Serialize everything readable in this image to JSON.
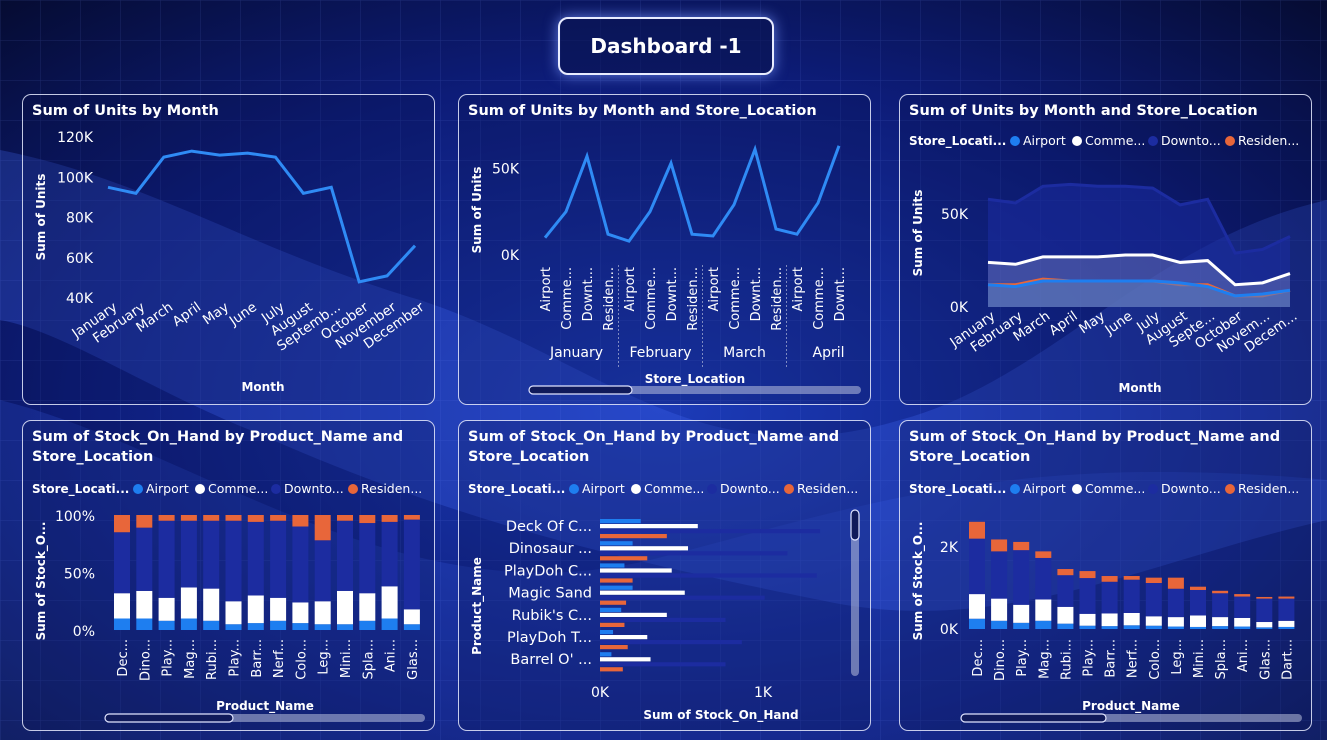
{
  "page": {
    "title": "Dashboard -1"
  },
  "colors": {
    "airport": "#1e7ef0",
    "commercial": "#ffffff",
    "downtown": "#1c2ca0",
    "residential": "#e8663a",
    "line": "#2f8bf5"
  },
  "legend": {
    "title": "Store_Locati...",
    "labels": [
      "Airport",
      "Comme...",
      "Downto...",
      "Residen..."
    ]
  },
  "chart_data": [
    {
      "type": "line",
      "title": "Sum of Units by Month",
      "xlabel": "Month",
      "ylabel": "Sum of Units",
      "categories": [
        "January",
        "February",
        "March",
        "April",
        "May",
        "June",
        "July",
        "August",
        "Septemb...",
        "October",
        "November",
        "December"
      ],
      "series": [
        {
          "values": [
            95000,
            92000,
            110000,
            113000,
            111000,
            112000,
            110000,
            92000,
            95000,
            48000,
            51000,
            66000
          ]
        }
      ],
      "yticks": [
        "40K",
        "60K",
        "80K",
        "100K",
        "120K"
      ],
      "ylim": [
        40000,
        120000
      ]
    },
    {
      "type": "line",
      "title": "Sum of Units by Month and Store_Location",
      "xlabel": "Store_Location",
      "ylabel": "Sum of Units",
      "groups": [
        "January",
        "February",
        "March",
        "April"
      ],
      "categories": [
        "Airport",
        "Comme...",
        "Downt...",
        "Residen...",
        "Airport",
        "Comme...",
        "Downt...",
        "Residen...",
        "Airport",
        "Comme...",
        "Downt...",
        "Residen...",
        "Airport",
        "Comme...",
        "Downt..."
      ],
      "series": [
        {
          "values": [
            10000,
            25000,
            57000,
            12000,
            8000,
            25000,
            53000,
            12000,
            11000,
            29000,
            61000,
            15000,
            12000,
            30000,
            63000
          ]
        }
      ],
      "yticks": [
        "0K",
        "50K"
      ],
      "ylim": [
        0,
        75000
      ]
    },
    {
      "type": "area",
      "title": "Sum of Units by Month and Store_Location",
      "xlabel": "Month",
      "ylabel": "Sum of Units",
      "categories": [
        "January",
        "February",
        "March",
        "April",
        "May",
        "June",
        "July",
        "August",
        "Septe...",
        "October",
        "Novem...",
        "Decem..."
      ],
      "series": [
        {
          "name": "Airport",
          "values": [
            12000,
            11000,
            14000,
            14000,
            14000,
            14000,
            14000,
            13000,
            11000,
            6000,
            7000,
            9000
          ]
        },
        {
          "name": "Comme...",
          "values": [
            24000,
            23000,
            27000,
            27000,
            27000,
            28000,
            28000,
            24000,
            25000,
            12000,
            13000,
            18000
          ]
        },
        {
          "name": "Downto...",
          "values": [
            58000,
            56000,
            65000,
            66000,
            65000,
            65000,
            64000,
            55000,
            58000,
            29000,
            31000,
            38000
          ]
        },
        {
          "name": "Residen...",
          "values": [
            12000,
            12000,
            15000,
            14000,
            14000,
            14000,
            14000,
            12000,
            12000,
            6000,
            6000,
            9000
          ]
        }
      ],
      "yticks": [
        "0K",
        "50K"
      ],
      "ylim": [
        0,
        70000
      ]
    },
    {
      "type": "bar",
      "stacked": "percent",
      "title": "Sum of Stock_On_Hand by Product_Name and Store_Location",
      "xlabel": "Product_Name",
      "ylabel": "Sum of Stock_O...",
      "categories": [
        "Dec...",
        "Dino...",
        "Play...",
        "Mag...",
        "Rubi...",
        "Play...",
        "Barr...",
        "Nerf...",
        "Colo...",
        "Leg...",
        "Mini...",
        "Spla...",
        "Ani...",
        "Glas..."
      ],
      "series": [
        {
          "name": "Airport",
          "values": [
            10,
            10,
            8,
            10,
            8,
            5,
            6,
            8,
            6,
            5,
            5,
            8,
            10,
            5
          ]
        },
        {
          "name": "Comme...",
          "values": [
            22,
            24,
            20,
            27,
            28,
            20,
            24,
            20,
            18,
            20,
            29,
            24,
            28,
            13
          ]
        },
        {
          "name": "Downto...",
          "values": [
            53,
            55,
            67,
            58,
            59,
            70,
            64,
            67,
            66,
            53,
            61,
            61,
            56,
            78
          ]
        },
        {
          "name": "Residen...",
          "values": [
            15,
            11,
            5,
            5,
            5,
            5,
            6,
            5,
            10,
            22,
            5,
            7,
            6,
            4
          ]
        }
      ],
      "yticks": [
        "0%",
        "50%",
        "100%"
      ],
      "ylim": [
        0,
        100
      ]
    },
    {
      "type": "bar",
      "orientation": "horizontal",
      "title": "Sum of Stock_On_Hand by Product_Name and Store_Location",
      "xlabel": "Sum of Stock_On_Hand",
      "ylabel": "Product_Name",
      "categories": [
        "Deck Of C...",
        "Dinosaur ...",
        "PlayDoh C...",
        "Magic Sand",
        "Rubik's C...",
        "PlayDoh T...",
        "Barrel O' ..."
      ],
      "series": [
        {
          "name": "Airport",
          "values": [
            250,
            200,
            150,
            200,
            130,
            80,
            70
          ]
        },
        {
          "name": "Comme...",
          "values": [
            600,
            540,
            440,
            520,
            410,
            290,
            310
          ]
        },
        {
          "name": "Downto...",
          "values": [
            1350,
            1150,
            1330,
            1010,
            770,
            870,
            770
          ]
        },
        {
          "name": "Residen...",
          "values": [
            410,
            290,
            200,
            160,
            150,
            170,
            140
          ]
        }
      ],
      "xticks": [
        "0K",
        "1K"
      ],
      "xlim": [
        0,
        1600
      ]
    },
    {
      "type": "bar",
      "stacked": true,
      "title": "Sum of Stock_On_Hand by Product_Name and Store_Location",
      "xlabel": "Product_Name",
      "ylabel": "Sum of Stock_O...",
      "categories": [
        "Dec...",
        "Dino...",
        "Play...",
        "Mag...",
        "Rubi...",
        "Play...",
        "Barr...",
        "Nerf...",
        "Colo...",
        "Leg...",
        "Mini...",
        "Spla...",
        "Ani...",
        "Glas...",
        "Dart..."
      ],
      "series": [
        {
          "name": "Airport",
          "values": [
            250,
            200,
            150,
            200,
            130,
            80,
            70,
            90,
            80,
            60,
            50,
            70,
            60,
            40,
            50
          ]
        },
        {
          "name": "Comme...",
          "values": [
            600,
            540,
            440,
            520,
            410,
            290,
            310,
            300,
            230,
            230,
            280,
            220,
            210,
            130,
            150
          ]
        },
        {
          "name": "Downto...",
          "values": [
            1350,
            1150,
            1330,
            1010,
            770,
            870,
            770,
            810,
            810,
            690,
            620,
            580,
            520,
            570,
            540
          ]
        },
        {
          "name": "Residen...",
          "values": [
            410,
            290,
            200,
            160,
            150,
            170,
            140,
            90,
            130,
            270,
            80,
            60,
            60,
            40,
            50
          ]
        }
      ],
      "yticks": [
        "0K",
        "2K"
      ],
      "ylim": [
        0,
        2800
      ]
    }
  ]
}
